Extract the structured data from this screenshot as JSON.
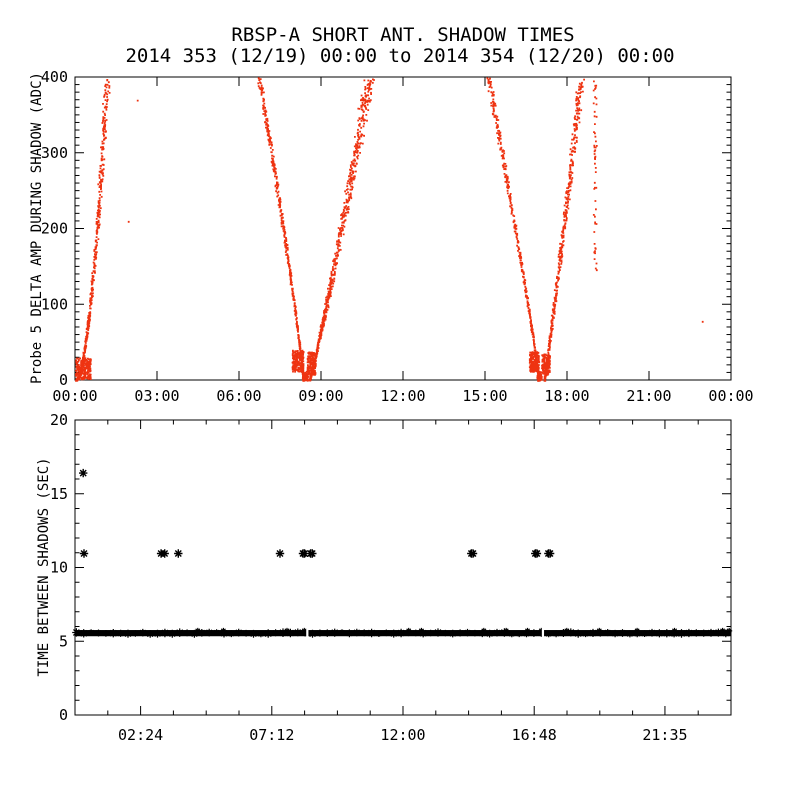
{
  "header": {
    "title": "RBSP-A SHORT ANT. SHADOW TIMES",
    "subtitle": "2014 353 (12/19) 00:00 to 2014 354 (12/20) 00:00"
  },
  "chart_data": [
    {
      "id": "delta-amp-panel",
      "type": "scatter",
      "title": "RBSP-A SHORT ANT. SHADOW TIMES",
      "subtitle": "2014 353 (12/19) 00:00 to 2014 354 (12/20) 00:00",
      "ylabel": "Probe 5 DELTA AMP DURING SHADOW (ADC)",
      "xlabel": "",
      "xlim_hours": [
        0,
        24
      ],
      "ylim": [
        0,
        400
      ],
      "x_major_ticks_hours": [
        0,
        3,
        6,
        9,
        12,
        15,
        18,
        21,
        24
      ],
      "x_tick_labels": [
        "00:00",
        "03:00",
        "06:00",
        "09:00",
        "12:00",
        "15:00",
        "18:00",
        "21:00",
        "00:00"
      ],
      "y_major_ticks": [
        0,
        100,
        200,
        300,
        400
      ],
      "y_minor_step": 10,
      "grid": false,
      "marker": "dot",
      "marker_color": "#ee3311",
      "branches": [
        {
          "name": "shadow1-egress-rise",
          "t_base": 0.0,
          "span_hours": 1.15,
          "dir": 1,
          "curve_p": 0.55,
          "n": 520,
          "jitter": [
            0.03,
            0.1
          ],
          "adc_bias": 1.8
        },
        {
          "name": "shadow2-ingress-fall",
          "t_base": 8.33,
          "span_hours": 1.62,
          "dir": -1,
          "curve_p": 1.15,
          "n": 480,
          "jitter": [
            0.02,
            0.08
          ],
          "adc_bias": 1.25
        },
        {
          "name": "shadow2-egress-rise",
          "t_base": 8.55,
          "span_hours": 2.2,
          "dir": 1,
          "curve_p": 0.9,
          "n": 680,
          "jitter": [
            0.03,
            0.22
          ],
          "adc_bias": 1.35
        },
        {
          "name": "shadow3-ingress-fall",
          "t_base": 16.95,
          "span_hours": 1.85,
          "dir": -1,
          "curve_p": 1.1,
          "n": 430,
          "jitter": [
            0.02,
            0.09
          ],
          "adc_bias": 1.25
        },
        {
          "name": "shadow3-egress-rise",
          "t_base": 17.15,
          "span_hours": 1.35,
          "dir": 1,
          "curve_p": 0.95,
          "n": 480,
          "jitter": [
            0.03,
            0.12
          ],
          "adc_bias": 1.3
        },
        {
          "name": "shadow3-late-streak",
          "t_base": 19.0,
          "span_hours": 0,
          "dir": 1,
          "curve_p": 1,
          "n": 55,
          "jitter": [
            0.07,
            0
          ],
          "adc_bias": 1,
          "adc_range": [
            140,
            400
          ]
        }
      ],
      "dense_low_blobs": [
        {
          "name": "shadow1-base",
          "t0": 0.0,
          "t1": 0.55,
          "adc0": 2,
          "adc1": 30,
          "n": 240
        },
        {
          "name": "shadow2-entry-hook",
          "t0": 7.92,
          "t1": 8.33,
          "adc0": 12,
          "adc1": 40,
          "n": 220
        },
        {
          "name": "shadow2-center-dip",
          "t0": 8.3,
          "t1": 8.5,
          "adc0": 0,
          "adc1": 12,
          "n": 60
        },
        {
          "name": "shadow2-exit-hook",
          "t0": 8.47,
          "t1": 8.78,
          "adc0": 8,
          "adc1": 38,
          "n": 170
        },
        {
          "name": "shadow3-entry-hook",
          "t0": 16.6,
          "t1": 16.95,
          "adc0": 12,
          "adc1": 38,
          "n": 180
        },
        {
          "name": "shadow3-center-dip",
          "t0": 16.88,
          "t1": 17.05,
          "adc0": 0,
          "adc1": 12,
          "n": 50
        },
        {
          "name": "shadow3-exit-hook",
          "t0": 17.05,
          "t1": 17.35,
          "adc0": 8,
          "adc1": 35,
          "n": 150
        }
      ],
      "stray_points": [
        [
          2.26,
          370
        ],
        [
          1.93,
          210
        ],
        [
          22.93,
          78
        ]
      ]
    },
    {
      "id": "shadow-interval-panel",
      "type": "scatter",
      "ylabel": "TIME BETWEEN SHADOWS (SEC)",
      "xlabel": "",
      "xlim_hours": [
        0,
        24
      ],
      "ylim": [
        0,
        20
      ],
      "x_major_ticks_hours": [
        2.4,
        7.2,
        12.0,
        16.8,
        21.5833
      ],
      "x_tick_labels": [
        "02:24",
        "07:12",
        "12:00",
        "16:48",
        "21:35"
      ],
      "x_minor_step_hours": 1.2,
      "y_major_ticks": [
        0,
        5,
        10,
        15,
        20
      ],
      "y_minor_step": 1,
      "grid": false,
      "marker": "asterisk",
      "marker_color": "#000000",
      "band": {
        "value_sec": 5.55,
        "t0_hours": 0,
        "t1_hours": 24,
        "gap_times_hours": [
          8.5,
          17.12
        ],
        "description": "dense continuous run of ~5.5 s shadow spacing"
      },
      "outliers_11s": {
        "value_sec": 10.95,
        "times_hours": [
          0.33,
          3.15,
          3.28,
          3.78,
          7.5,
          8.34,
          8.4,
          8.62,
          8.68,
          14.5,
          14.56,
          16.84,
          16.9,
          17.32,
          17.38
        ]
      },
      "outlier_16s": {
        "value_sec": 16.4,
        "times_hours": [
          0.3
        ]
      }
    }
  ]
}
